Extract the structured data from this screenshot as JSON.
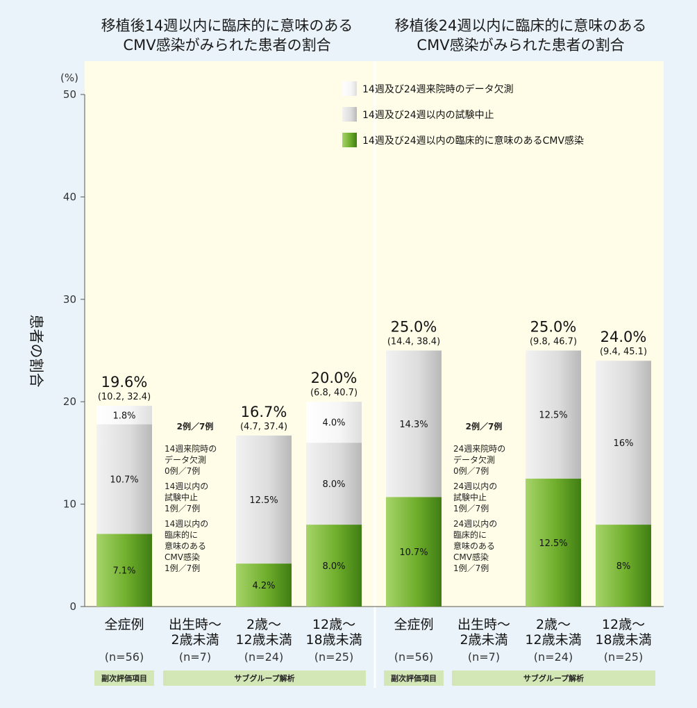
{
  "chart_data": {
    "type": "bar",
    "stacked": true,
    "titles": [
      [
        "移植後14週以内に臨床的に意味のある",
        "CMV感染がみられた患者の割合"
      ],
      [
        "移植後24週以内に臨床的に意味のある",
        "CMV感染がみられた患者の割合"
      ]
    ],
    "ylabel": "患者の割合",
    "yunit": "(%)",
    "ylim": [
      0,
      50
    ],
    "yticks": [
      0,
      10,
      20,
      30,
      40,
      50
    ],
    "legend": [
      "14週及び24週来院時のデータ欠測",
      "14週及び24週以内の試験中止",
      "14週及び24週以内の臨床的に意味のあるCMV感染"
    ],
    "colors": {
      "infection": "#6fae2c",
      "discontinued": "#d6d6d6",
      "missing": "#f4f4f4",
      "band": "#d2e6b6"
    },
    "groups": [
      {
        "bars": [
          {
            "label": "全症例",
            "n": "(n=56)",
            "total": 19.6,
            "total_label": "19.6%",
            "ci": "(10.2, 32.4)",
            "segments": [
              {
                "value": 7.1,
                "label": "7.1%"
              },
              {
                "value": 10.7,
                "label": "10.7%"
              },
              {
                "value": 1.8,
                "label": "1.8%"
              }
            ]
          },
          {
            "label": "出生時〜|2歳未満",
            "n": "(n=7)",
            "total": null,
            "notes": [
              "2例／7例",
              "",
              "14週来院時の",
              "データ欠測",
              "0例／7例",
              "",
              "14週以内の",
              "試験中止",
              "1例／7例",
              "",
              "14週以内の",
              "臨床的に",
              "意味のある",
              "CMV感染",
              "1例／7例"
            ]
          },
          {
            "label": "2歳〜|12歳未満",
            "n": "(n=24)",
            "total": 16.7,
            "total_label": "16.7%",
            "ci": "(4.7, 37.4)",
            "segments": [
              {
                "value": 4.2,
                "label": "4.2%"
              },
              {
                "value": 12.5,
                "label": "12.5%"
              }
            ]
          },
          {
            "label": "12歳〜|18歳未満",
            "n": "(n=25)",
            "total": 20.0,
            "total_label": "20.0%",
            "ci": "(6.8, 40.7)",
            "segments": [
              {
                "value": 8.0,
                "label": "8.0%"
              },
              {
                "value": 8.0,
                "label": "8.0%"
              },
              {
                "value": 4.0,
                "label": "4.0%"
              }
            ]
          }
        ],
        "bands": [
          "副次評価項目",
          "サブグループ解析"
        ]
      },
      {
        "bars": [
          {
            "label": "全症例",
            "n": "(n=56)",
            "total": 25.0,
            "total_label": "25.0%",
            "ci": "(14.4, 38.4)",
            "segments": [
              {
                "value": 10.7,
                "label": "10.7%"
              },
              {
                "value": 14.3,
                "label": "14.3%"
              }
            ]
          },
          {
            "label": "出生時〜|2歳未満",
            "n": "(n=7)",
            "total": null,
            "notes": [
              "2例／7例",
              "",
              "24週来院時の",
              "データ欠測",
              "0例／7例",
              "",
              "24週以内の",
              "試験中止",
              "1例／7例",
              "",
              "24週以内の",
              "臨床的に",
              "意味のある",
              "CMV感染",
              "1例／7例"
            ]
          },
          {
            "label": "2歳〜|12歳未満",
            "n": "(n=24)",
            "total": 25.0,
            "total_label": "25.0%",
            "ci": "(9.8, 46.7)",
            "segments": [
              {
                "value": 12.5,
                "label": "12.5%"
              },
              {
                "value": 12.5,
                "label": "12.5%"
              }
            ]
          },
          {
            "label": "12歳〜|18歳未満",
            "n": "(n=25)",
            "total": 24.0,
            "total_label": "24.0%",
            "ci": "(9.4, 45.1)",
            "segments": [
              {
                "value": 8,
                "label": "8%"
              },
              {
                "value": 16,
                "label": "16%"
              }
            ]
          }
        ],
        "bands": [
          "副次評価項目",
          "サブグループ解析"
        ]
      }
    ]
  }
}
